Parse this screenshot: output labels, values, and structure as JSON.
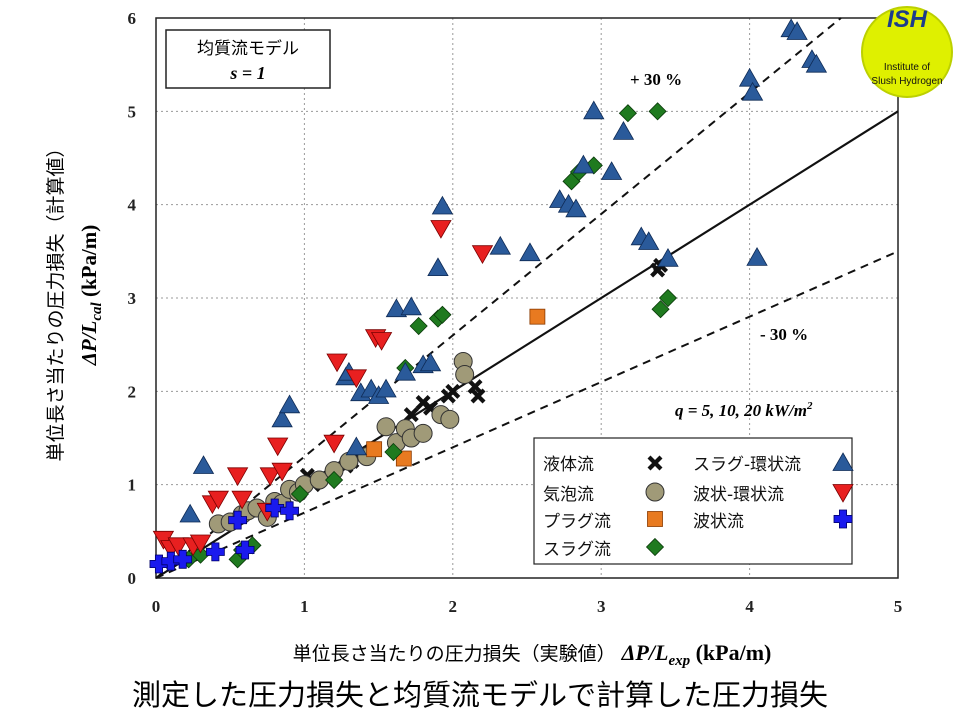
{
  "caption": "測定した圧力損失と均質流モデルで計算した圧力損失",
  "logo": {
    "main": "ISH",
    "sub1": "Institute of",
    "sub2": "Slush Hydrogen"
  },
  "chart_data": {
    "type": "scatter",
    "xlim": [
      0,
      5
    ],
    "ylim": [
      0,
      6
    ],
    "x_ticks": [
      0,
      1,
      2,
      3,
      4,
      5
    ],
    "y_ticks": [
      0,
      1,
      2,
      3,
      4,
      5,
      6
    ],
    "grid": true,
    "xlabel_jp": "単位長さ当たりの圧力損失（実験値）",
    "xlabel_sym": "ΔP/L",
    "xlabel_sub": "exp",
    "xlabel_unit": " (kPa/m)",
    "ylabel_jp": "単位長さ当たりの圧力損失（計算値）",
    "ylabel_sym": "ΔP/L",
    "ylabel_sub": "cal",
    "ylabel_unit": " (kPa/m)",
    "model_box": {
      "line1": "均質流モデル",
      "line2": "s = 1"
    },
    "plus_label": "+ 30 %",
    "minus_label": "- 30 %",
    "q_label": "q = 5, 10, 20 kW/m",
    "q_sup": "2",
    "reference_lines": [
      {
        "name": "1:1",
        "slope": 1.0,
        "style": "solid"
      },
      {
        "name": "+30",
        "slope": 1.3,
        "style": "dashed"
      },
      {
        "name": "-30",
        "slope": 0.7,
        "style": "dashed"
      }
    ],
    "series": [
      {
        "name": "液体流",
        "marker": "cross",
        "color": "#111111",
        "points": [
          [
            1.02,
            1.1
          ],
          [
            1.06,
            1.0
          ],
          [
            1.28,
            1.2
          ],
          [
            1.32,
            1.25
          ],
          [
            1.72,
            1.75
          ],
          [
            1.8,
            1.88
          ],
          [
            1.85,
            1.82
          ],
          [
            1.97,
            1.95
          ],
          [
            2.0,
            2.0
          ],
          [
            2.15,
            2.05
          ],
          [
            2.17,
            1.95
          ],
          [
            3.38,
            3.3
          ],
          [
            3.4,
            3.35
          ]
        ]
      },
      {
        "name": "気泡流",
        "marker": "circle",
        "color": "#a09a78",
        "points": [
          [
            0.42,
            0.58
          ],
          [
            0.5,
            0.6
          ],
          [
            0.58,
            0.68
          ],
          [
            0.62,
            0.72
          ],
          [
            0.68,
            0.75
          ],
          [
            0.75,
            0.65
          ],
          [
            0.8,
            0.82
          ],
          [
            0.85,
            0.8
          ],
          [
            0.9,
            0.95
          ],
          [
            0.96,
            0.92
          ],
          [
            1.0,
            1.0
          ],
          [
            1.1,
            1.05
          ],
          [
            1.2,
            1.15
          ],
          [
            1.3,
            1.25
          ],
          [
            1.42,
            1.3
          ],
          [
            1.55,
            1.62
          ],
          [
            1.62,
            1.45
          ],
          [
            1.68,
            1.6
          ],
          [
            1.72,
            1.5
          ],
          [
            1.8,
            1.55
          ],
          [
            1.92,
            1.75
          ],
          [
            1.98,
            1.7
          ],
          [
            2.07,
            2.32
          ],
          [
            2.08,
            2.18
          ]
        ]
      },
      {
        "name": "プラグ流",
        "marker": "square",
        "color": "#e87a20",
        "points": [
          [
            1.47,
            1.38
          ],
          [
            1.67,
            1.28
          ],
          [
            2.57,
            2.8
          ]
        ]
      },
      {
        "name": "スラグ流",
        "marker": "diamond",
        "color": "#1f7a1f",
        "points": [
          [
            0.22,
            0.2
          ],
          [
            0.3,
            0.25
          ],
          [
            0.55,
            0.2
          ],
          [
            0.58,
            0.3
          ],
          [
            0.65,
            0.35
          ],
          [
            0.97,
            0.9
          ],
          [
            1.2,
            1.05
          ],
          [
            1.6,
            1.35
          ],
          [
            1.68,
            2.25
          ],
          [
            1.77,
            2.7
          ],
          [
            1.9,
            2.78
          ],
          [
            1.93,
            2.82
          ],
          [
            2.8,
            4.25
          ],
          [
            2.85,
            4.35
          ],
          [
            2.95,
            4.42
          ],
          [
            3.18,
            4.98
          ],
          [
            3.38,
            5.0
          ],
          [
            3.4,
            2.88
          ],
          [
            3.45,
            3.0
          ]
        ]
      },
      {
        "name": "スラグ-環状流",
        "marker": "triangle-up",
        "color": "#2a5a9a",
        "points": [
          [
            0.23,
            0.68
          ],
          [
            0.32,
            1.2
          ],
          [
            0.85,
            1.7
          ],
          [
            0.9,
            1.85
          ],
          [
            1.28,
            2.15
          ],
          [
            1.3,
            2.2
          ],
          [
            1.35,
            1.4
          ],
          [
            1.38,
            1.98
          ],
          [
            1.45,
            2.02
          ],
          [
            1.5,
            1.95
          ],
          [
            1.55,
            2.02
          ],
          [
            1.62,
            2.88
          ],
          [
            1.68,
            2.2
          ],
          [
            1.72,
            2.9
          ],
          [
            1.8,
            2.28
          ],
          [
            1.85,
            2.3
          ],
          [
            1.9,
            3.32
          ],
          [
            1.93,
            3.98
          ],
          [
            2.32,
            3.55
          ],
          [
            2.52,
            3.48
          ],
          [
            2.72,
            4.05
          ],
          [
            2.78,
            4.0
          ],
          [
            2.83,
            3.95
          ],
          [
            2.88,
            4.42
          ],
          [
            2.95,
            5.0
          ],
          [
            3.07,
            4.35
          ],
          [
            3.15,
            4.78
          ],
          [
            3.27,
            3.65
          ],
          [
            3.32,
            3.6
          ],
          [
            3.45,
            3.42
          ],
          [
            4.0,
            5.35
          ],
          [
            4.02,
            5.2
          ],
          [
            4.05,
            3.43
          ],
          [
            4.28,
            5.88
          ],
          [
            4.32,
            5.85
          ],
          [
            4.42,
            5.55
          ],
          [
            4.45,
            5.5
          ]
        ]
      },
      {
        "name": "波状-環状流",
        "marker": "triangle-down",
        "color": "#e82020",
        "points": [
          [
            0.05,
            0.42
          ],
          [
            0.1,
            0.32
          ],
          [
            0.15,
            0.35
          ],
          [
            0.25,
            0.35
          ],
          [
            0.3,
            0.38
          ],
          [
            0.38,
            0.8
          ],
          [
            0.42,
            0.85
          ],
          [
            0.55,
            1.1
          ],
          [
            0.58,
            0.85
          ],
          [
            0.75,
            0.72
          ],
          [
            0.77,
            1.1
          ],
          [
            0.82,
            1.42
          ],
          [
            0.85,
            1.15
          ],
          [
            1.2,
            1.45
          ],
          [
            1.22,
            2.32
          ],
          [
            1.35,
            2.15
          ],
          [
            1.48,
            2.58
          ],
          [
            1.52,
            2.55
          ],
          [
            1.92,
            3.75
          ],
          [
            2.2,
            3.48
          ]
        ]
      },
      {
        "name": "波状流",
        "marker": "plus",
        "color": "#1a1aee",
        "points": [
          [
            0.02,
            0.15
          ],
          [
            0.1,
            0.18
          ],
          [
            0.18,
            0.2
          ],
          [
            0.4,
            0.28
          ],
          [
            0.55,
            0.62
          ],
          [
            0.6,
            0.3
          ],
          [
            0.8,
            0.75
          ],
          [
            0.9,
            0.72
          ]
        ]
      }
    ]
  }
}
